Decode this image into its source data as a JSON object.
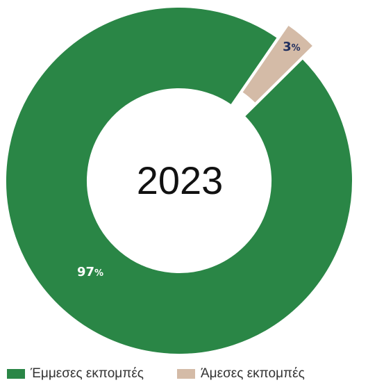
{
  "chart_data": {
    "type": "pie",
    "variant": "donut",
    "center_text": "2023",
    "categories": [
      "Έμμεσες εκπομπές",
      "Άμεσες εκπομπές"
    ],
    "values": [
      97,
      3
    ],
    "unit": "%",
    "colors": [
      "#2A8646",
      "#D4BBA7"
    ],
    "label_colors": [
      "#FFFFFF",
      "#1F2E5E"
    ],
    "exploded": [
      false,
      true
    ],
    "legend_position": "bottom"
  }
}
